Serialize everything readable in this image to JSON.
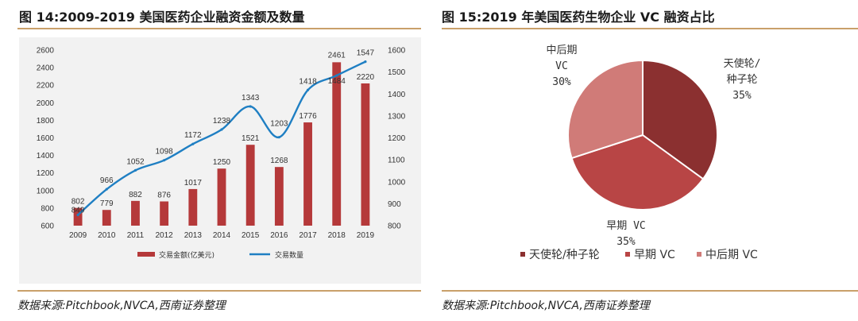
{
  "left": {
    "title": "图 14:2009-2019 美国医药企业融资金额及数量",
    "source": "数据来源:Pitchbook,NVCA,西南证券整理"
  },
  "right": {
    "title": "图 15:2019 年美国医药生物企业 VC 融资占比",
    "source": "数据来源:Pitchbook,NVCA,西南证券整理"
  },
  "chart_data": [
    {
      "type": "bar",
      "categories": [
        "2009",
        "2010",
        "2011",
        "2012",
        "2013",
        "2014",
        "2015",
        "2016",
        "2017",
        "2018",
        "2019"
      ],
      "series": [
        {
          "name": "交易金额(亿美元)",
          "type": "bar",
          "axis": "left",
          "values": [
            802,
            779,
            882,
            876,
            1017,
            1250,
            1521,
            1268,
            1776,
            2461,
            2220
          ],
          "labels": [
            "802",
            "779",
            "882",
            "876",
            "1017",
            "1250",
            "1521",
            "1268",
            "1776",
            "2461",
            "2220"
          ],
          "color": "#b5393a"
        },
        {
          "name": "交易数量",
          "type": "line",
          "axis": "right",
          "values": [
            849,
            966,
            1052,
            1098,
            1172,
            1238,
            1343,
            1203,
            1418,
            1484,
            1547
          ],
          "labels": [
            "849",
            "966",
            "1052",
            "1098",
            "1172",
            "1238",
            "1343",
            "1203",
            "1418",
            "1484",
            "1547"
          ],
          "color": "#1f7fc3"
        }
      ],
      "y_left": {
        "lim": [
          600,
          2600
        ],
        "ticks": [
          "600",
          "800",
          "1000",
          "1200",
          "1400",
          "1600",
          "1800",
          "2000",
          "2200",
          "2400",
          "2600"
        ]
      },
      "y_right": {
        "lim": [
          800,
          1600
        ],
        "ticks": [
          "800",
          "900",
          "1000",
          "1100",
          "1200",
          "1300",
          "1400",
          "1500",
          "1600"
        ]
      },
      "legend_position": "bottom"
    },
    {
      "type": "pie",
      "slices": [
        {
          "label_lines": [
            "天使轮/",
            "种子轮"
          ],
          "pct_text": "35%",
          "value": 35,
          "legend": "天使轮/种子轮",
          "color": "#8b3030"
        },
        {
          "label_lines": [
            "早期 VC"
          ],
          "pct_text": "35%",
          "value": 35,
          "legend": "早期 VC",
          "color": "#b84545"
        },
        {
          "label_lines": [
            "中后期",
            "VC"
          ],
          "pct_text": "30%",
          "value": 30,
          "legend": "中后期 VC",
          "color": "#d07b78"
        }
      ],
      "legend_position": "bottom"
    }
  ]
}
